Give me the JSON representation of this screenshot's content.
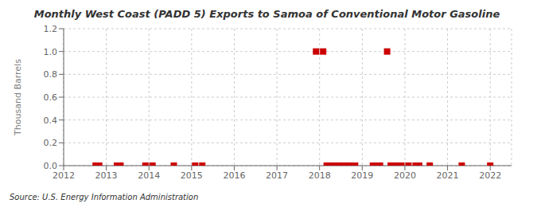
{
  "chart_data": {
    "type": "scatter",
    "title": "Monthly West Coast (PADD 5) Exports to Samoa of Conventional Motor Gasoline",
    "ylabel": "Thousand Barrels",
    "source": "Source: U.S. Energy Information Administration",
    "color": "#cc0000",
    "marker": "square",
    "grid": true,
    "xlim": [
      2012.0,
      2022.5
    ],
    "xticks": [
      2012,
      2013,
      2014,
      2015,
      2016,
      2017,
      2018,
      2019,
      2020,
      2021,
      2022
    ],
    "ylim": [
      0.0,
      1.2
    ],
    "yticks": [
      {
        "value": 0,
        "label": "0.0"
      },
      0.2,
      0.4,
      0.6,
      0.8,
      {
        "value": 1,
        "label": "1.0"
      },
      1.2
    ],
    "x": [
      2012.75,
      2012.833,
      2013.25,
      2013.333,
      2013.917,
      2014.083,
      2014.583,
      2015.083,
      2015.25,
      2017.917,
      2018.083,
      2018.167,
      2018.25,
      2018.333,
      2018.417,
      2018.5,
      2018.583,
      2018.667,
      2018.75,
      2018.833,
      2019.25,
      2019.333,
      2019.417,
      2019.583,
      2019.667,
      2019.75,
      2019.833,
      2019.917,
      2020.083,
      2020.25,
      2020.333,
      2020.583,
      2021.333,
      2022.0
    ],
    "values": [
      0.0,
      0.0,
      0.0,
      0.0,
      0.0,
      0.0,
      0.0,
      0.0,
      0.0,
      1.0,
      1.0,
      0.0,
      0.0,
      0.0,
      0.0,
      0.0,
      0.0,
      0.0,
      0.0,
      0.0,
      0.0,
      0.0,
      0.0,
      1.0,
      0.0,
      0.0,
      0.0,
      0.0,
      0.0,
      0.0,
      0.0,
      0.0,
      0.0,
      0.0
    ]
  }
}
